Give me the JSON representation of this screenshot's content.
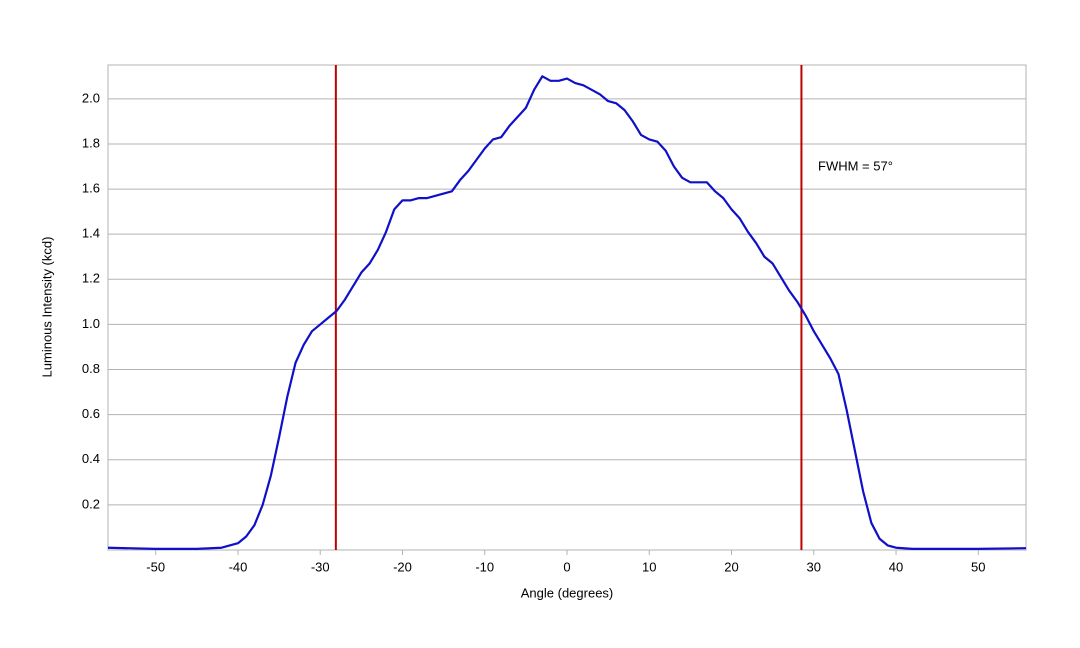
{
  "chart_data": {
    "type": "line",
    "y_label": "Luminous Intensity (kcd)",
    "x_label": "Angle (degrees)",
    "annotation": "FWHM = 57°",
    "x": [
      -55.8,
      -50,
      -45,
      -42,
      -40,
      -39,
      -38,
      -37,
      -36,
      -35,
      -34,
      -33,
      -32,
      -31,
      -30,
      -29,
      -28,
      -27,
      -26,
      -25,
      -24,
      -23,
      -22,
      -21,
      -20,
      -19,
      -18,
      -17,
      -16,
      -15,
      -14,
      -13,
      -12,
      -11,
      -10,
      -9,
      -8,
      -7,
      -6,
      -5,
      -4,
      -3,
      -2,
      -1,
      0,
      1,
      2,
      3,
      4,
      5,
      6,
      7,
      8,
      9,
      10,
      11,
      12,
      13,
      14,
      15,
      16,
      17,
      18,
      19,
      20,
      21,
      22,
      23,
      24,
      25,
      26,
      27,
      28,
      29,
      30,
      31,
      32,
      33,
      34,
      35,
      36,
      37,
      38,
      39,
      40,
      42,
      45,
      50,
      55.8
    ],
    "series": [
      {
        "color": "#1010c8",
        "values": [
          0.01,
          0.005,
          0.005,
          0.01,
          0.03,
          0.06,
          0.11,
          0.2,
          0.33,
          0.5,
          0.68,
          0.83,
          0.91,
          0.97,
          1.0,
          1.03,
          1.06,
          1.11,
          1.17,
          1.23,
          1.27,
          1.33,
          1.41,
          1.51,
          1.55,
          1.55,
          1.56,
          1.56,
          1.57,
          1.58,
          1.59,
          1.64,
          1.68,
          1.73,
          1.78,
          1.82,
          1.83,
          1.88,
          1.92,
          1.96,
          2.04,
          2.1,
          2.08,
          2.08,
          2.09,
          2.07,
          2.06,
          2.04,
          2.02,
          1.99,
          1.98,
          1.95,
          1.9,
          1.84,
          1.82,
          1.81,
          1.77,
          1.7,
          1.65,
          1.63,
          1.63,
          1.63,
          1.59,
          1.56,
          1.51,
          1.47,
          1.41,
          1.36,
          1.3,
          1.27,
          1.21,
          1.15,
          1.1,
          1.04,
          0.97,
          0.91,
          0.85,
          0.78,
          0.62,
          0.44,
          0.26,
          0.12,
          0.05,
          0.02,
          0.01,
          0.005,
          0.005,
          0.005,
          0.008
        ]
      }
    ],
    "vertical_lines": [
      -28.1,
      28.5
    ],
    "vertical_line_color": "#c00000",
    "xlim": [
      -55.8,
      55.8
    ],
    "ylim": [
      0,
      2.15
    ],
    "xticks": [
      -50,
      -40,
      -30,
      -20,
      -10,
      0,
      10,
      20,
      30,
      40,
      50
    ],
    "yticks": [
      0.2,
      0.4,
      0.6,
      0.8,
      {
        "value": 1.0,
        "label": "1.0"
      },
      1.2,
      1.4,
      1.6,
      1.8,
      {
        "value": 2.0,
        "label": "2.0"
      }
    ],
    "grid": true
  }
}
